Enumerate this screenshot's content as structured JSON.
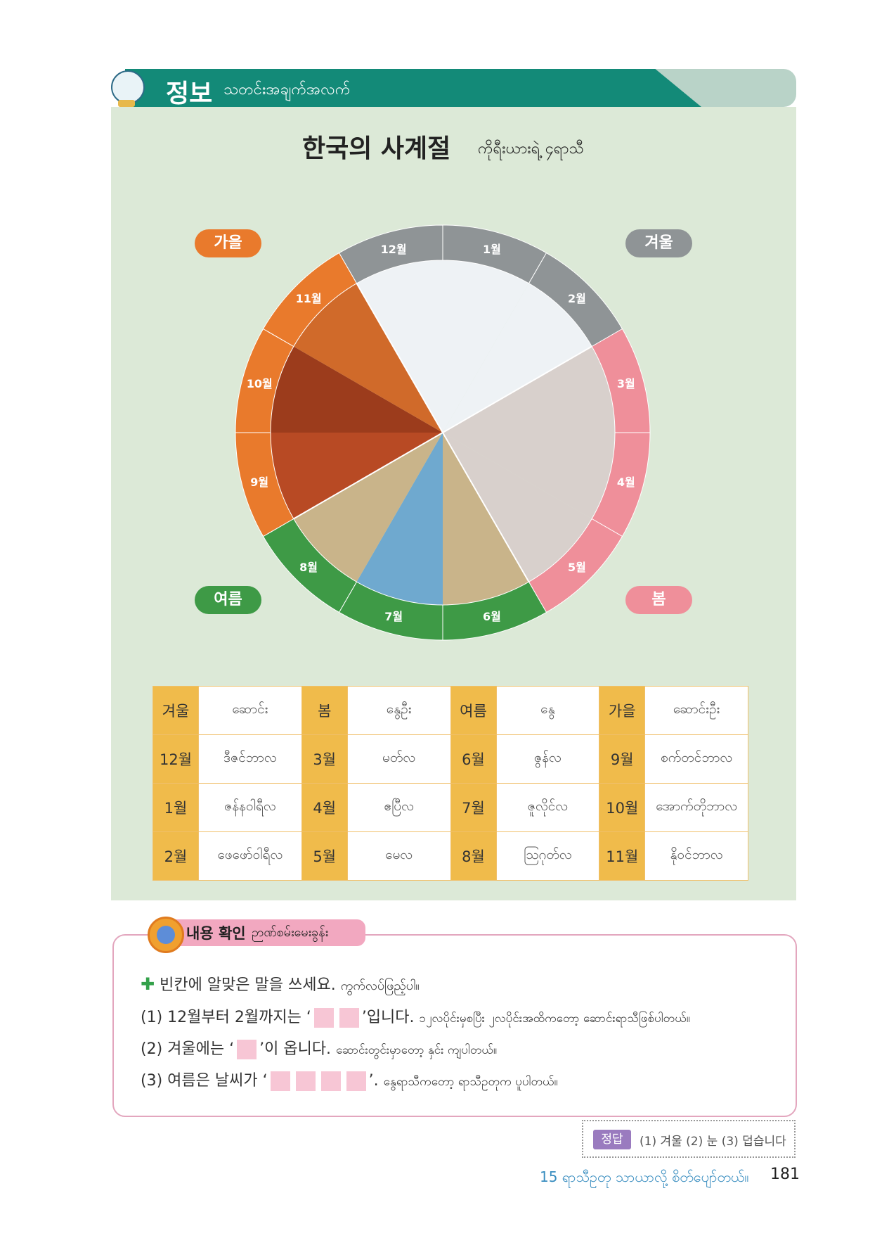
{
  "header": {
    "title_ko": "정보",
    "title_my": "သတင်းအချက်အလက်"
  },
  "page_title": {
    "ko": "한국의 사계절",
    "my": "ကိုရီးယားရဲ့ ၄ရာသီ"
  },
  "seasons": {
    "autumn": {
      "label": "가을",
      "color": "#e97a2c"
    },
    "winter": {
      "label": "겨울",
      "color": "#8f9496"
    },
    "spring": {
      "label": "봄",
      "color": "#ef8f9a"
    },
    "summer": {
      "label": "여름",
      "color": "#3e9a46"
    }
  },
  "wheel_months": [
    "12월",
    "1월",
    "2월",
    "3월",
    "4월",
    "5월",
    "6월",
    "7월",
    "8월",
    "9월",
    "10월",
    "11월"
  ],
  "table": {
    "rows": [
      [
        "겨울",
        "ဆောင်း",
        "봄",
        "နွေဦး",
        "여름",
        "နွေ",
        "가을",
        "ဆောင်းဦး"
      ],
      [
        "12월",
        "ဒီဇင်ဘာလ",
        "3월",
        "မတ်လ",
        "6월",
        "ဇွန်လ",
        "9월",
        "စက်တင်ဘာလ"
      ],
      [
        "1월",
        "ဇန်နဝါရီလ",
        "4월",
        "ဧပြီလ",
        "7월",
        "ဇူလိုင်လ",
        "10월",
        "အောက်တိုဘာလ"
      ],
      [
        "2월",
        "ဖေဖော်ဝါရီလ",
        "5월",
        "မေလ",
        "8월",
        "ဩဂုတ်လ",
        "11월",
        "နိုဝင်ဘာလ"
      ]
    ]
  },
  "exercise": {
    "tag_ko": "내용 확인",
    "tag_my": "ဉာဏ်စမ်းမေးခွန်း",
    "instruction_ko": "빈칸에 알맞은 말을 쓰세요.",
    "instruction_my": "ကွက်လပ်ဖြည့်ပါ။",
    "q1_pre": "(1) 12월부터 2월까지는 ‘",
    "q1_post": "’입니다.",
    "q1_my": "၁၂လပိုင်းမှစပြီး ၂လပိုင်းအထိကတော့ ဆောင်းရာသီဖြစ်ပါတယ်။",
    "q2_pre": "(2) 겨울에는 ‘",
    "q2_post": "’이 옵니다.",
    "q2_my": "ဆောင်းတွင်းမှာတော့ နှင်း ကျပါတယ်။",
    "q3_pre": "(3) 여름은 날씨가 ‘",
    "q3_post": "’.",
    "q3_my": "နွေရာသီကတော့ ရာသီဥတုက ပူပါတယ်။"
  },
  "answer": {
    "label": "정답",
    "text": "(1) 겨울 (2) 눈 (3) 덥습니다"
  },
  "footer": {
    "chapter": "15 ရာသီဥတု သာယာလို့ စိတ်ပျော်တယ်။",
    "page": "181"
  }
}
